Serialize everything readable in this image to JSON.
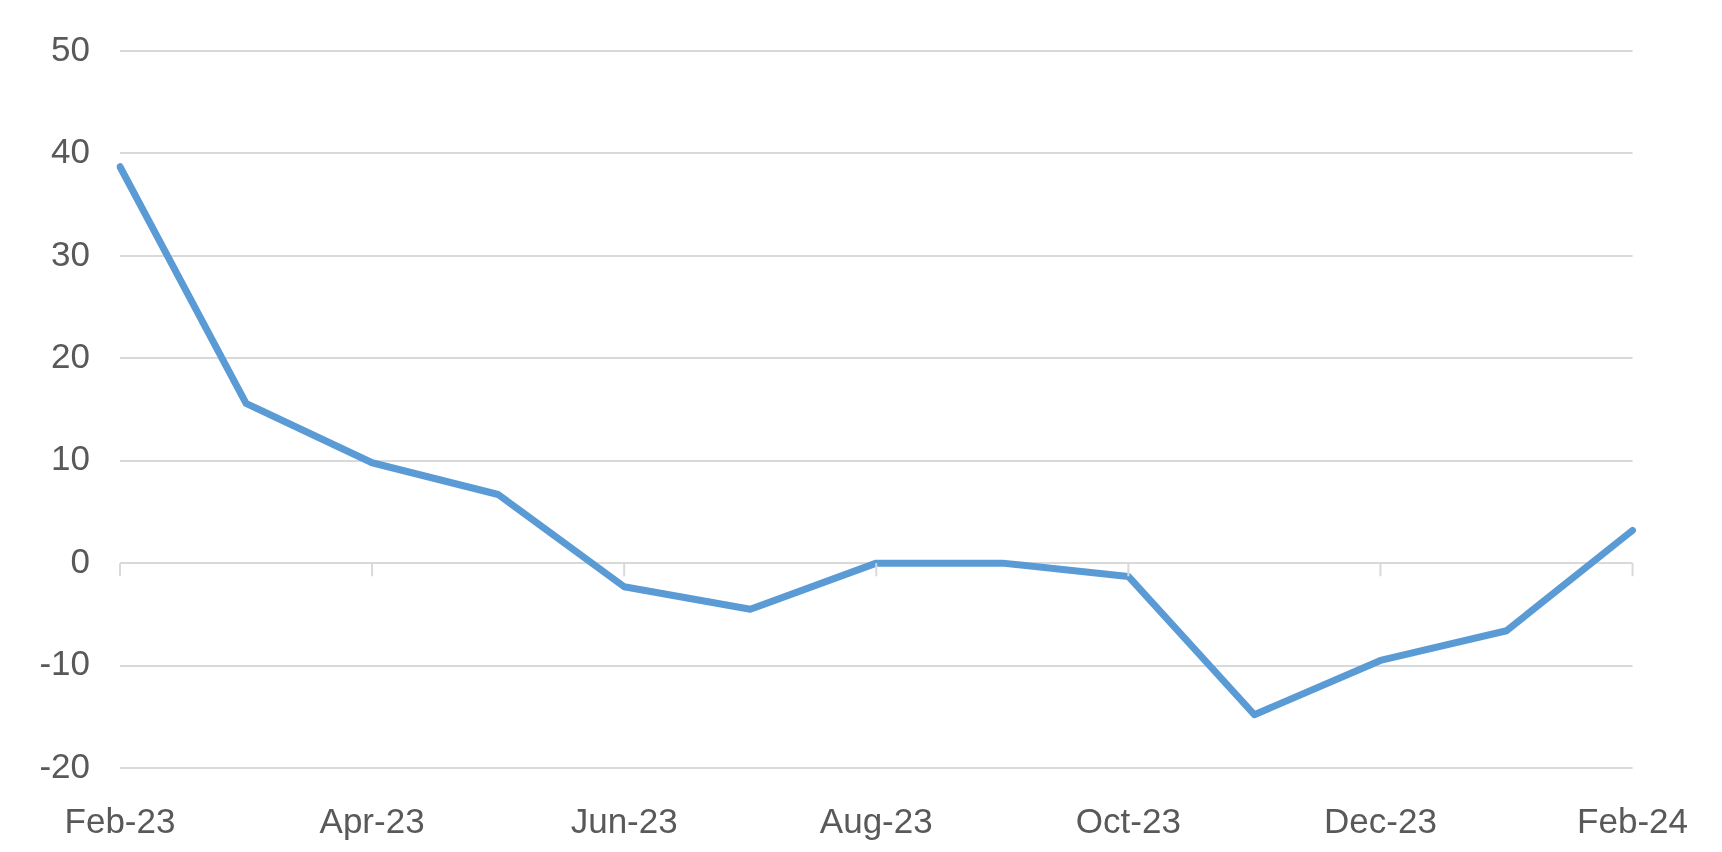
{
  "chart_data": {
    "type": "line",
    "categories": [
      "Feb-23",
      null,
      "Apr-23",
      null,
      "Jun-23",
      null,
      "Aug-23",
      null,
      "Oct-23",
      null,
      "Dec-23",
      null,
      "Feb-24"
    ],
    "series": [
      {
        "color": "#5b9bd5",
        "values": [
          38.7,
          15.6,
          9.8,
          6.7,
          -2.3,
          -4.5,
          0,
          0,
          -1.3,
          -14.8,
          -9.5,
          -6.6,
          3.2
        ]
      }
    ],
    "ylim": [
      -20,
      50
    ],
    "yticks": [
      -20,
      -10,
      0,
      10,
      20,
      30,
      40,
      50
    ],
    "grid": "y",
    "marker": "none"
  }
}
